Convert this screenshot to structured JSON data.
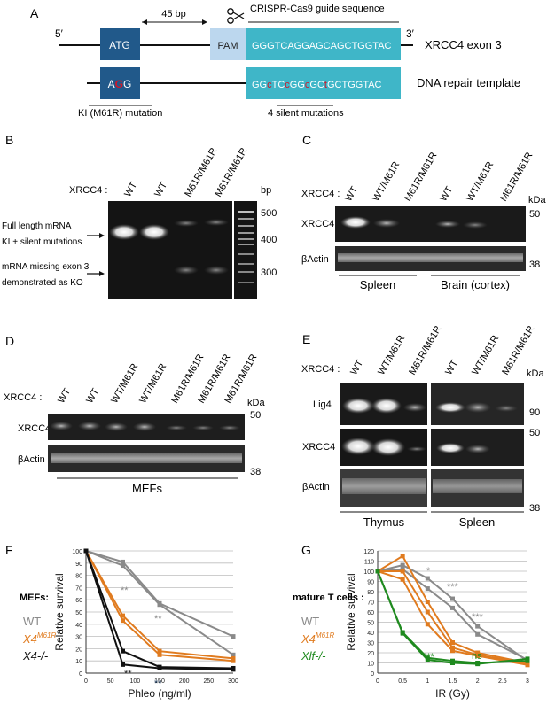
{
  "panelA": {
    "label": "A",
    "five_prime": "5′",
    "three_prime": "3′",
    "atg": "ATG",
    "bp45": "45 bp",
    "pam": "PAM",
    "guide_title": "CRISPR-Cas9 guide sequence",
    "guide_seq": "GGGTCAGGAGCAGCTGGTAC",
    "exon_label": "XRCC4 exon 3",
    "agg_a": "A",
    "agg_g": "G",
    "tmpl_1": "GG",
    "tmpl_2": "TC",
    "tmpl_3": "GG",
    "tmpl_4": "GC",
    "tmpl_5": "GCTGGTAC",
    "template_label": "DNA repair template",
    "ki_label": "KI (M61R) mutation",
    "silent_label": "4 silent mutations",
    "mut_color": "#d0182a",
    "exon_color": "#3fb6c8",
    "atg_color": "#21598a",
    "pam_color": "#bcd7ee"
  },
  "panelB": {
    "label": "B",
    "xrcc4": "XRCC4 :",
    "lanes": [
      "WT",
      "WT",
      "M61R/M61R",
      "M61R/M61R"
    ],
    "bp_unit": "bp",
    "markers": [
      "500",
      "400",
      "300"
    ],
    "ann1a": "Full length mRNA",
    "ann1b": "KI + silent mutations",
    "ann2a": "mRNA missing exon 3",
    "ann2b": "demonstrated as KO"
  },
  "panelC": {
    "label": "C",
    "xrcc4": "XRCC4 :",
    "lanes": [
      "WT",
      "WT/M61R",
      "M61R/M61R",
      "WT",
      "WT/M61R",
      "M61R/M61R"
    ],
    "kda": "kDa",
    "row1": "XRCC4",
    "row2": "βActin",
    "m50": "50",
    "m38": "38",
    "tissue1": "Spleen",
    "tissue2": "Brain (cortex)"
  },
  "panelD": {
    "label": "D",
    "xrcc4": "XRCC4 :",
    "lanes": [
      "WT",
      "WT",
      "WT/M61R",
      "WT/M61R",
      "M61R/M61R",
      "M61R/M61R",
      "M61R/M61R"
    ],
    "kda": "kDa",
    "row1": "XRCC4",
    "row2": "βActin",
    "m50": "50",
    "m38": "38",
    "footer": "MEFs"
  },
  "panelE": {
    "label": "E",
    "xrcc4": "XRCC4 :",
    "lanes": [
      "WT",
      "WT/M61R",
      "M61R/M61R",
      "WT",
      "WT/M61R",
      "M61R/M61R"
    ],
    "kda": "kDa",
    "row1": "Lig4",
    "row2": "XRCC4",
    "row3": "βActin",
    "m90": "90",
    "m50": "50",
    "m38": "38",
    "tissue1": "Thymus",
    "tissue2": "Spleen"
  },
  "panelF": {
    "label": "F",
    "legend_title": "MEFs:",
    "legend": [
      {
        "text": "WT",
        "sup": "",
        "color": "#8a8a8a"
      },
      {
        "text": "X4",
        "sup": "M61R",
        "color": "#e07b1f"
      },
      {
        "text": "X4-/-",
        "sup": "",
        "color": "#111111"
      }
    ],
    "sig": [
      {
        "text": "**",
        "color": "#8a8a8a"
      },
      {
        "text": "**",
        "color": "#8a8a8a"
      },
      {
        "text": "**",
        "color": "#222222"
      },
      {
        "text": "**",
        "color": "#1f3a5a"
      }
    ]
  },
  "panelG": {
    "label": "G",
    "legend_title": "mature T cells :",
    "legend": [
      {
        "text": "WT",
        "sup": "",
        "color": "#8a8a8a"
      },
      {
        "text": "X4",
        "sup": "M61R",
        "color": "#e07b1f"
      },
      {
        "text": "Xlf-/-",
        "sup": "",
        "color": "#1f8a1f"
      }
    ],
    "sig": [
      {
        "text": "*",
        "color": "#8a8a8a"
      },
      {
        "text": "***",
        "color": "#8a8a8a"
      },
      {
        "text": "***",
        "color": "#8a8a8a"
      },
      {
        "text": "***",
        "color": "#1f8a1f"
      },
      {
        "text": "ns",
        "color": "#1f8a1f"
      }
    ]
  },
  "chart_data": [
    {
      "type": "line",
      "xlabel": "Phleo (ng/ml)",
      "ylabel": "Relative survival",
      "xlim": [
        0,
        300
      ],
      "ylim": [
        0,
        100
      ],
      "xticks": [
        0,
        50,
        100,
        150,
        200,
        250,
        300
      ],
      "yticks": [
        0,
        10,
        20,
        30,
        40,
        50,
        60,
        70,
        80,
        90,
        100
      ],
      "grid": "horizontal",
      "series": [
        {
          "name": "WT",
          "color": "#8a8a8a",
          "x": [
            0,
            75,
            150,
            300
          ],
          "values": [
            100,
            91,
            57,
            30
          ]
        },
        {
          "name": "WT",
          "color": "#8a8a8a",
          "x": [
            0,
            75,
            150,
            300
          ],
          "values": [
            100,
            88,
            56,
            15
          ]
        },
        {
          "name": "X4 M61R",
          "color": "#e07b1f",
          "x": [
            0,
            75,
            150,
            300
          ],
          "values": [
            100,
            47,
            18,
            12
          ]
        },
        {
          "name": "X4 M61R",
          "color": "#e07b1f",
          "x": [
            0,
            75,
            150,
            300
          ],
          "values": [
            100,
            43,
            15,
            10
          ]
        },
        {
          "name": "X4-/-",
          "color": "#111111",
          "x": [
            0,
            75,
            150,
            300
          ],
          "values": [
            100,
            18,
            5,
            4
          ]
        },
        {
          "name": "X4-/-",
          "color": "#111111",
          "x": [
            0,
            75,
            150,
            300
          ],
          "values": [
            100,
            7,
            4,
            3
          ]
        }
      ]
    },
    {
      "type": "line",
      "xlabel": "IR (Gy)",
      "ylabel": "Relative survival",
      "xlim": [
        0,
        3
      ],
      "ylim": [
        0,
        120
      ],
      "xticks": [
        0,
        0.5,
        1,
        1.5,
        2,
        2.5,
        3
      ],
      "yticks": [
        0,
        10,
        20,
        30,
        40,
        50,
        60,
        70,
        80,
        90,
        100,
        110,
        120
      ],
      "grid": "horizontal",
      "series": [
        {
          "name": "WT",
          "color": "#8a8a8a",
          "x": [
            0,
            0.5,
            1,
            1.5,
            2,
            3
          ],
          "values": [
            100,
            106,
            93,
            73,
            46,
            12
          ]
        },
        {
          "name": "WT",
          "color": "#8a8a8a",
          "x": [
            0,
            0.5,
            1,
            1.5,
            2,
            3
          ],
          "values": [
            100,
            102,
            83,
            64,
            38,
            13
          ]
        },
        {
          "name": "X4 M61R",
          "color": "#e07b1f",
          "x": [
            0,
            0.5,
            1,
            1.5,
            2,
            3
          ],
          "values": [
            100,
            115,
            70,
            30,
            20,
            10
          ]
        },
        {
          "name": "X4 M61R",
          "color": "#e07b1f",
          "x": [
            0,
            0.5,
            1,
            1.5,
            2,
            3
          ],
          "values": [
            100,
            100,
            60,
            25,
            18,
            9
          ]
        },
        {
          "name": "X4 M61R",
          "color": "#e07b1f",
          "x": [
            0,
            0.5,
            1,
            1.5,
            2,
            3
          ],
          "values": [
            100,
            92,
            48,
            22,
            17,
            8
          ]
        },
        {
          "name": "Xlf-/-",
          "color": "#1f8a1f",
          "x": [
            0,
            0.5,
            1,
            1.5,
            2,
            3
          ],
          "values": [
            100,
            40,
            15,
            12,
            10,
            12
          ]
        },
        {
          "name": "Xlf-/-",
          "color": "#1f8a1f",
          "x": [
            0,
            0.5,
            1,
            1.5,
            2,
            3
          ],
          "values": [
            100,
            39,
            13,
            10,
            9,
            14
          ]
        }
      ]
    }
  ]
}
